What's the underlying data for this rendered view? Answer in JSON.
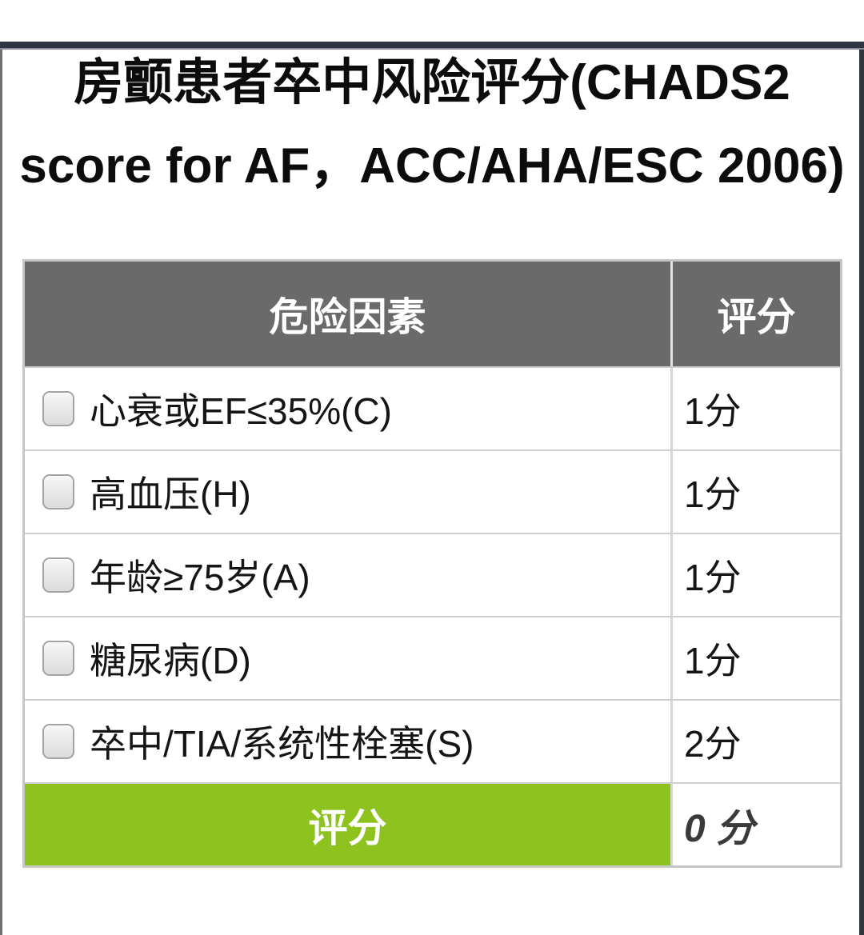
{
  "title": {
    "line1": "房颤患者卒中风险评分(CHADS2",
    "line2": "score for AF，ACC/AHA/ESC 2006)"
  },
  "table": {
    "headers": {
      "factor": "危险因素",
      "score": "评分"
    },
    "rows": [
      {
        "label": "心衰或EF≤35%(C)",
        "score": "1分",
        "checked": false
      },
      {
        "label": "高血压(H)",
        "score": "1分",
        "checked": false
      },
      {
        "label": "年龄≥75岁(A)",
        "score": "1分",
        "checked": false
      },
      {
        "label": "糖尿病(D)",
        "score": "1分",
        "checked": false
      },
      {
        "label": "卒中/TIA/系统性栓塞(S)",
        "score": "2分",
        "checked": false
      }
    ],
    "footer": {
      "label": "评分",
      "total": "0 分"
    }
  },
  "colors": {
    "header_bg": "#6a6a6a",
    "footer_green": "#8dc21f",
    "top_bar": "#2e3440"
  }
}
